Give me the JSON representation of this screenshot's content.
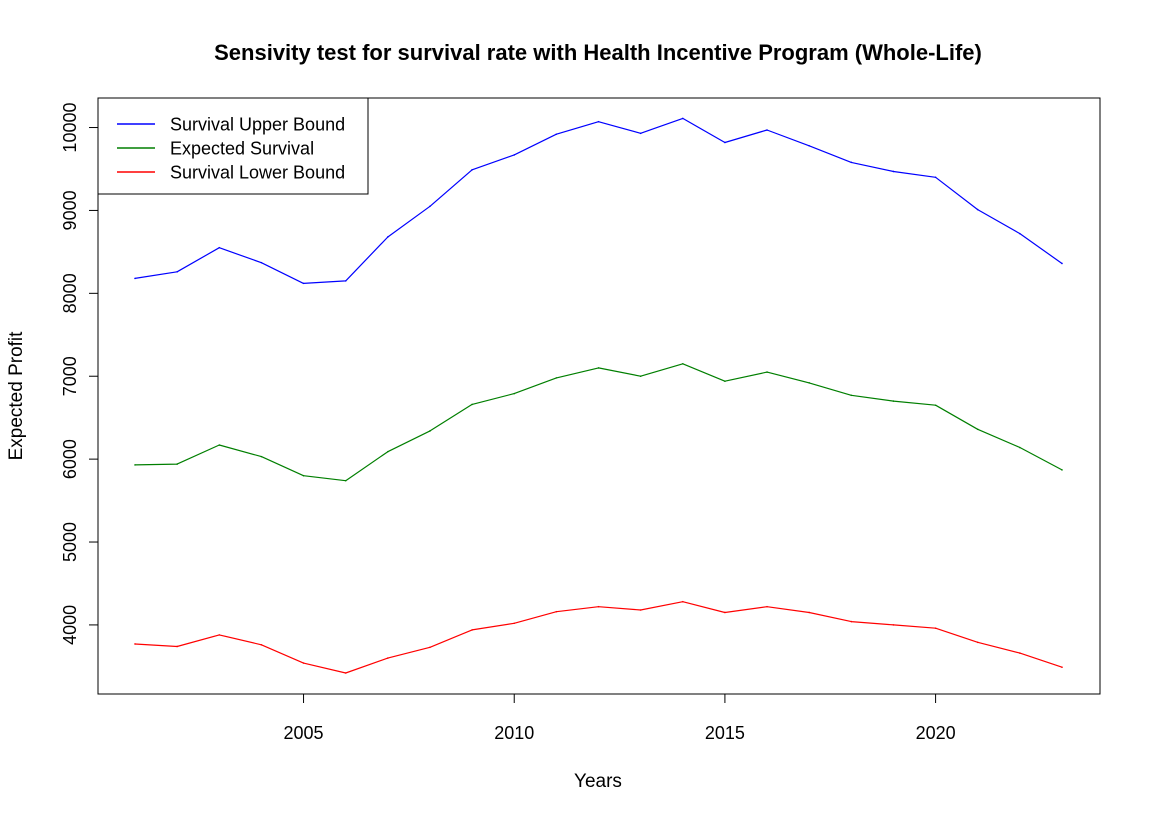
{
  "chart_data": {
    "type": "line",
    "title": "Sensivity test for survival rate with Health Incentive Program (Whole-Life)",
    "xlabel": "Years",
    "ylabel": "Expected Profit",
    "xlim": [
      2001,
      2023
    ],
    "ylim": [
      3420,
      10115
    ],
    "x_ticks": [
      2005,
      2010,
      2015,
      2020
    ],
    "y_ticks": [
      4000,
      5000,
      6000,
      7000,
      8000,
      9000,
      10000
    ],
    "grid": false,
    "legend_position": "top-left",
    "x": [
      2001,
      2002,
      2003,
      2004,
      2005,
      2006,
      2007,
      2008,
      2009,
      2010,
      2011,
      2012,
      2013,
      2014,
      2015,
      2016,
      2017,
      2018,
      2019,
      2020,
      2021,
      2022,
      2023
    ],
    "series": [
      {
        "name": "Survival Upper Bound",
        "color": "#0000ff",
        "values": [
          8180,
          8260,
          8550,
          8370,
          8120,
          8150,
          8680,
          9050,
          9490,
          9670,
          9920,
          10070,
          9930,
          10110,
          9820,
          9970,
          9780,
          9580,
          9470,
          9400,
          9010,
          8720,
          8360
        ]
      },
      {
        "name": "Expected Survival",
        "color": "#007f00",
        "values": [
          5930,
          5940,
          6170,
          6030,
          5800,
          5740,
          6090,
          6340,
          6660,
          6790,
          6980,
          7100,
          7000,
          7150,
          6940,
          7050,
          6920,
          6770,
          6700,
          6650,
          6360,
          6140,
          5870
        ]
      },
      {
        "name": "Survival Lower Bound",
        "color": "#ff0000",
        "values": [
          3770,
          3740,
          3880,
          3760,
          3540,
          3420,
          3600,
          3730,
          3940,
          4020,
          4160,
          4220,
          4180,
          4280,
          4150,
          4220,
          4150,
          4040,
          4000,
          3960,
          3790,
          3660,
          3490
        ]
      }
    ]
  }
}
